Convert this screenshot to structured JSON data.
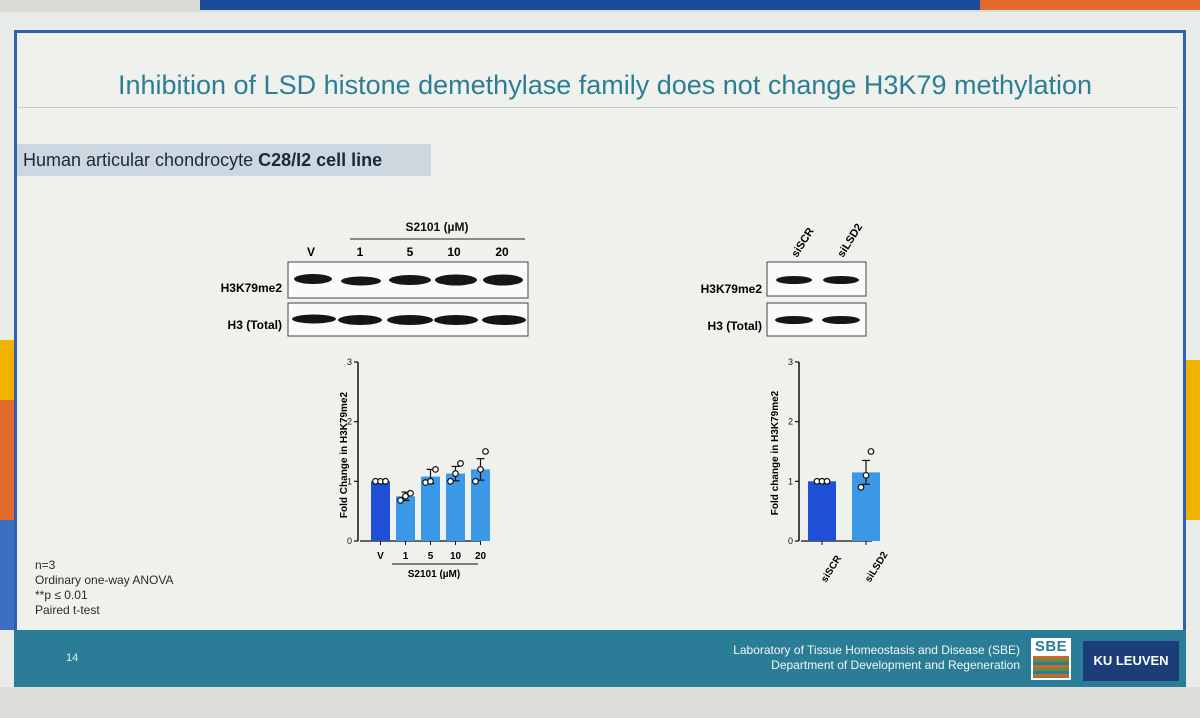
{
  "slide": {
    "title": "Inhibition of LSD histone demethylase family does not change H3K79 methylation",
    "subtitle_prefix": "Human articular chondrocyte ",
    "subtitle_bold": "C28/I2 cell line",
    "page_number": "14",
    "stats": [
      "n=3",
      "Ordinary one-way ANOVA",
      "**p ≤ 0.01",
      "Paired t-test"
    ],
    "lab_line1": "Laboratory of Tissue Homeostasis and Disease (SBE)",
    "lab_line2": "Department of Development and Regeneration",
    "sbe_logo": "SBE",
    "ku_logo": "KU LEUVEN"
  },
  "left_blot": {
    "treatment": "S2101 (µM)",
    "lanes": [
      "V",
      "1",
      "5",
      "10",
      "20"
    ],
    "rows": [
      "H3K79me2",
      "H3 (Total)"
    ]
  },
  "right_blot": {
    "lanes": [
      "siSCR",
      "siLSD2"
    ],
    "rows": [
      "H3K79me2",
      "H3 (Total)"
    ]
  },
  "colors": {
    "vehicle_bar": "#1f4fd6",
    "treated_bar": "#3a98e6",
    "title": "#2d7e95",
    "footer": "#2b7d97"
  },
  "chart_data": [
    {
      "type": "bar",
      "title": "",
      "ylabel": "Fold Change in H3K79me2",
      "xlabel": "S2101 (µM)",
      "categories": [
        "V",
        "1",
        "5",
        "10",
        "20"
      ],
      "values": [
        1.0,
        0.75,
        1.08,
        1.13,
        1.2
      ],
      "errors": [
        0.0,
        0.07,
        0.12,
        0.12,
        0.18
      ],
      "points": [
        [
          1.0,
          1.0,
          1.0
        ],
        [
          0.68,
          0.75,
          0.8
        ],
        [
          0.98,
          1.0,
          1.2
        ],
        [
          1.0,
          1.13,
          1.3
        ],
        [
          1.0,
          1.2,
          1.5
        ]
      ],
      "ylim": [
        0,
        3
      ],
      "yticks": [
        "0",
        "1",
        "2",
        "3"
      ]
    },
    {
      "type": "bar",
      "title": "",
      "ylabel": "Fold change in H3K79me2",
      "xlabel": "",
      "categories": [
        "siSCR",
        "siLSD2"
      ],
      "values": [
        1.0,
        1.15
      ],
      "errors": [
        0.0,
        0.2
      ],
      "points": [
        [
          1.0,
          1.0,
          1.0
        ],
        [
          0.9,
          1.1,
          1.5
        ]
      ],
      "ylim": [
        0,
        3
      ],
      "yticks": [
        "0",
        "1",
        "2",
        "3"
      ]
    }
  ]
}
